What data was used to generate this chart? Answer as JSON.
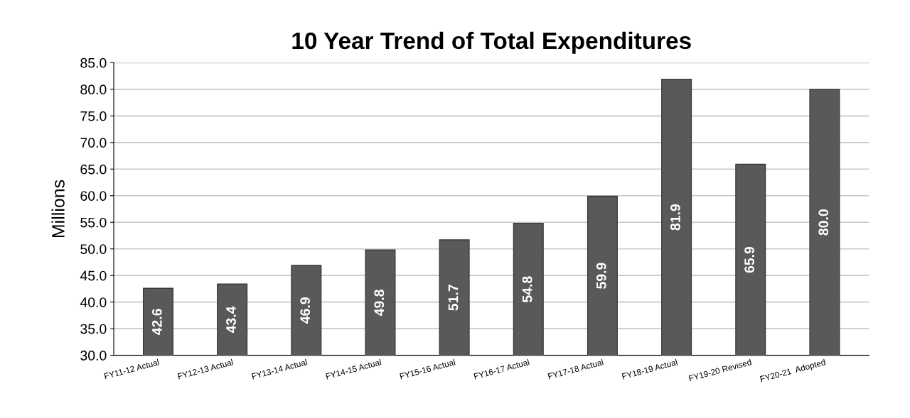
{
  "chart_data": {
    "type": "bar",
    "title": "10 Year Trend of Total Expenditures",
    "ylabel": "Millions",
    "categories": [
      "FY11-12 Actual",
      "FY12-13 Actual",
      "FY13-14 Actual",
      "FY14-15 Actual",
      "FY15-16 Actual",
      "FY16-17 Actual",
      "FY17-18 Actual",
      "FY18-19 Actual",
      "FY19-20 Revised",
      "FY20-21  Adopted"
    ],
    "values": [
      42.6,
      43.4,
      46.9,
      49.8,
      51.7,
      54.8,
      59.9,
      81.9,
      65.9,
      80.0
    ],
    "value_labels": [
      "42.6",
      "43.4",
      "46.9",
      "49.8",
      "51.7",
      "54.8",
      "59.9",
      "81.9",
      "65.9",
      "80.0"
    ],
    "color": "#595959",
    "ylim": [
      30,
      85
    ],
    "yticks": [
      {
        "value": 30,
        "label": "30.0"
      },
      {
        "value": 35,
        "label": "35.0"
      },
      {
        "value": 40,
        "label": "40.0"
      },
      {
        "value": 45,
        "label": "45.0"
      },
      {
        "value": 50,
        "label": "50.0"
      },
      {
        "value": 55,
        "label": "55.0"
      },
      {
        "value": 60,
        "label": "60.0"
      },
      {
        "value": 65,
        "label": "65.0"
      },
      {
        "value": 70,
        "label": "70.0"
      },
      {
        "value": 75,
        "label": "75.0"
      },
      {
        "value": 80,
        "label": "80.0"
      },
      {
        "value": 85,
        "label": "85.0"
      }
    ],
    "grid": "y",
    "legend": false
  }
}
